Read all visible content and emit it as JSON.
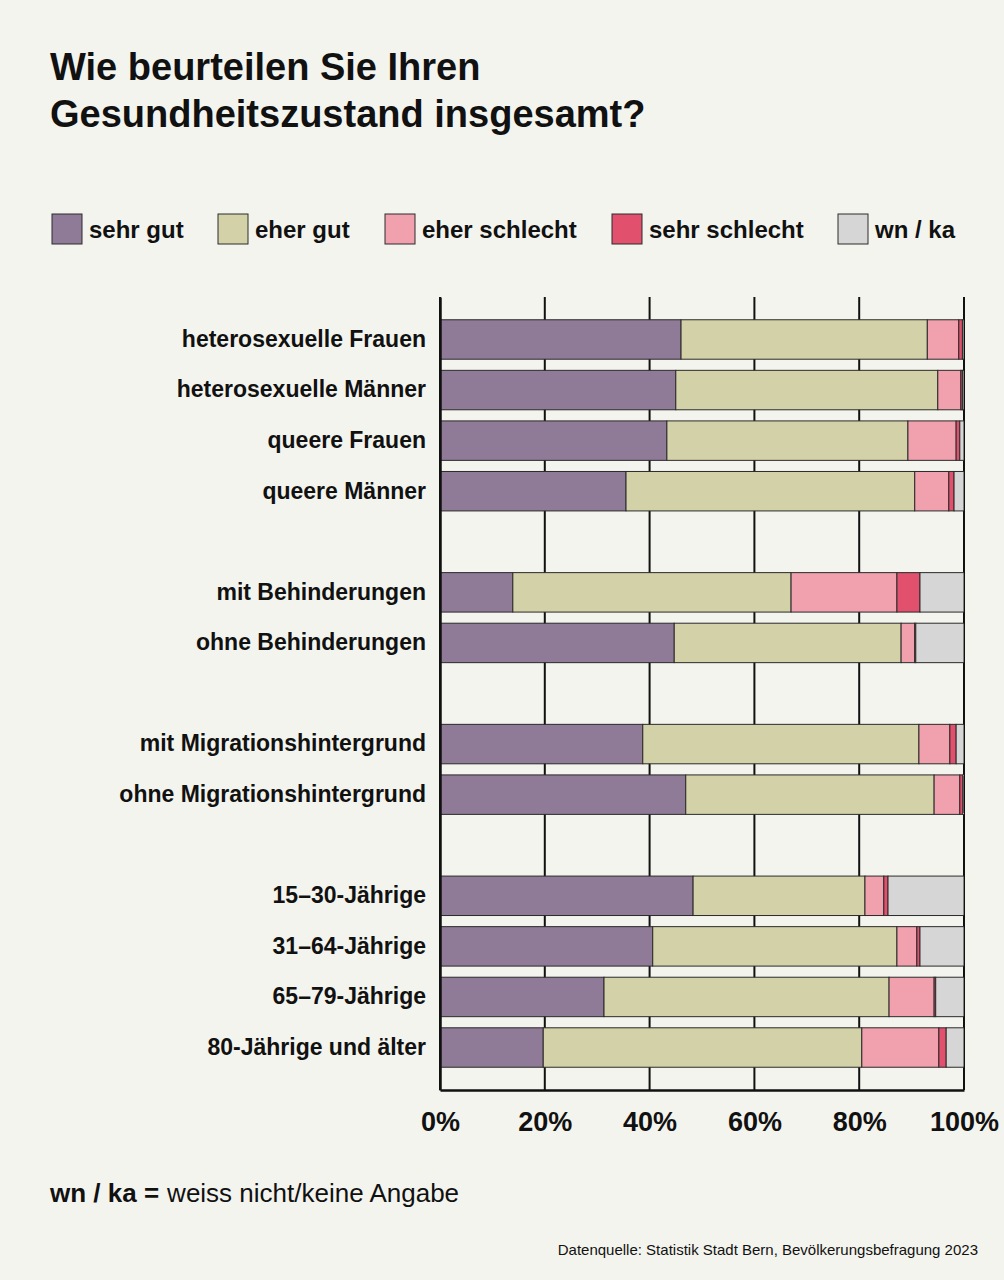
{
  "chart_data": {
    "type": "bar",
    "orientation": "horizontal",
    "stacked": true,
    "grid": true,
    "legend": "top",
    "title": "Wie beurteilen Sie Ihren Gesundheitszustand insgesamt?",
    "categories": [
      "heterosexuelle Frauen",
      "heterosexuelle Männer",
      "queere Frauen",
      "queere Männer",
      null,
      "mit Behinderungen",
      "ohne Behinderungen",
      null,
      "mit Migrationshintergrund",
      "ohne Migrationshintergrund",
      null,
      "15–30-Jährige",
      "31–64-Jährige",
      "65–79-Jährige",
      "80-Jährige und älter"
    ],
    "series": [
      {
        "name": "sehr gut",
        "color": "#8f7a98",
        "values": [
          46,
          45,
          43.3,
          35.5,
          null,
          13.9,
          44.7,
          null,
          38.7,
          46.9,
          null,
          48.3,
          40.6,
          31.3,
          19.7
        ]
      },
      {
        "name": "eher gut",
        "color": "#d3d1a8",
        "values": [
          47,
          50,
          46,
          55.1,
          null,
          53.1,
          43.3,
          null,
          52.7,
          47.4,
          null,
          32.8,
          46.6,
          54.4,
          60.8
        ]
      },
      {
        "name": "eher schlecht",
        "color": "#f1a0ae",
        "values": [
          6,
          4.4,
          9.2,
          6.5,
          null,
          20.2,
          2.6,
          null,
          5.9,
          4.9,
          null,
          3.6,
          3.8,
          8.6,
          14.7
        ]
      },
      {
        "name": "sehr schlecht",
        "color": "#e1506c",
        "values": [
          0.7,
          0.3,
          0.7,
          1,
          null,
          4.4,
          0.2,
          null,
          1.2,
          0.6,
          null,
          0.8,
          0.6,
          0.3,
          1.4
        ]
      },
      {
        "name": "wn / ka",
        "color": "#d6d6d6",
        "values": [
          0.3,
          0.3,
          0.8,
          1.9,
          null,
          8.4,
          9.2,
          null,
          1.5,
          0.2,
          null,
          14.5,
          8.4,
          5.4,
          3.4
        ]
      }
    ],
    "xlim": [
      0,
      100
    ],
    "xticks": [
      {
        "value": 0,
        "label": "0%"
      },
      {
        "value": 20,
        "label": "20%"
      },
      {
        "value": 40,
        "label": "40%"
      },
      {
        "value": 60,
        "label": "60%"
      },
      {
        "value": 80,
        "label": "80%"
      },
      {
        "value": 100,
        "label": "100%"
      }
    ],
    "annotations": [
      {
        "term": "wn / ka =",
        "text": "weiss nicht/keine Angabe"
      }
    ],
    "source": "Datenquelle: Statistik Stadt Bern, Bevölkerungsbefragung 2023"
  }
}
